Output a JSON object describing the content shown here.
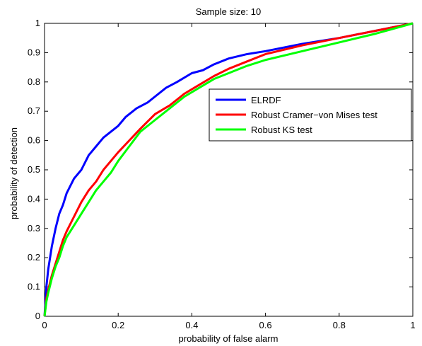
{
  "chart_data": {
    "type": "line",
    "title": "Sample size: 10",
    "xlabel": "probability of false alarm",
    "ylabel": "probability of detection",
    "xlim": [
      0,
      1
    ],
    "ylim": [
      0,
      1
    ],
    "xticks": [
      0,
      0.2,
      0.4,
      0.6,
      0.8,
      1
    ],
    "xtick_labels": [
      "0",
      "0.2",
      "0.4",
      "0.6",
      "0.8",
      "1"
    ],
    "yticks": [
      0,
      0.1,
      0.2,
      0.3,
      0.4,
      0.5,
      0.6,
      0.7,
      0.8,
      0.9,
      1
    ],
    "ytick_labels": [
      "0",
      "0.1",
      "0.2",
      "0.3",
      "0.4",
      "0.5",
      "0.6",
      "0.7",
      "0.8",
      "0.9",
      "1"
    ],
    "grid": false,
    "legend_position": "right",
    "series": [
      {
        "name": "ELRDF",
        "color": "#0000ff",
        "x": [
          0,
          0.005,
          0.01,
          0.02,
          0.03,
          0.04,
          0.05,
          0.06,
          0.08,
          0.1,
          0.12,
          0.14,
          0.16,
          0.18,
          0.2,
          0.22,
          0.25,
          0.28,
          0.3,
          0.33,
          0.36,
          0.4,
          0.43,
          0.46,
          0.5,
          0.55,
          0.6,
          0.7,
          0.8,
          0.9,
          1
        ],
        "y": [
          0,
          0.1,
          0.16,
          0.24,
          0.3,
          0.35,
          0.38,
          0.42,
          0.47,
          0.5,
          0.55,
          0.58,
          0.61,
          0.63,
          0.65,
          0.68,
          0.71,
          0.73,
          0.75,
          0.78,
          0.8,
          0.83,
          0.84,
          0.86,
          0.88,
          0.895,
          0.905,
          0.93,
          0.95,
          0.975,
          1
        ]
      },
      {
        "name": "Robust Cramer−von Mises test",
        "color": "#ff0000",
        "x": [
          0,
          0.005,
          0.01,
          0.02,
          0.03,
          0.04,
          0.05,
          0.06,
          0.08,
          0.1,
          0.12,
          0.14,
          0.16,
          0.18,
          0.2,
          0.23,
          0.26,
          0.3,
          0.34,
          0.38,
          0.42,
          0.46,
          0.5,
          0.55,
          0.6,
          0.7,
          0.8,
          0.9,
          1
        ],
        "y": [
          0,
          0.06,
          0.09,
          0.14,
          0.18,
          0.22,
          0.26,
          0.29,
          0.34,
          0.39,
          0.43,
          0.46,
          0.5,
          0.53,
          0.56,
          0.6,
          0.64,
          0.69,
          0.72,
          0.76,
          0.79,
          0.82,
          0.845,
          0.87,
          0.895,
          0.925,
          0.95,
          0.975,
          1
        ]
      },
      {
        "name": "Robust KS test",
        "color": "#00ff00",
        "x": [
          0,
          0.005,
          0.01,
          0.02,
          0.03,
          0.04,
          0.05,
          0.06,
          0.08,
          0.1,
          0.12,
          0.14,
          0.16,
          0.18,
          0.2,
          0.23,
          0.26,
          0.3,
          0.34,
          0.38,
          0.42,
          0.46,
          0.5,
          0.55,
          0.6,
          0.7,
          0.8,
          0.9,
          1
        ],
        "y": [
          0,
          0.05,
          0.08,
          0.13,
          0.17,
          0.2,
          0.24,
          0.27,
          0.31,
          0.35,
          0.39,
          0.43,
          0.46,
          0.49,
          0.53,
          0.58,
          0.63,
          0.67,
          0.71,
          0.75,
          0.78,
          0.81,
          0.83,
          0.855,
          0.875,
          0.905,
          0.935,
          0.965,
          1
        ]
      }
    ]
  }
}
